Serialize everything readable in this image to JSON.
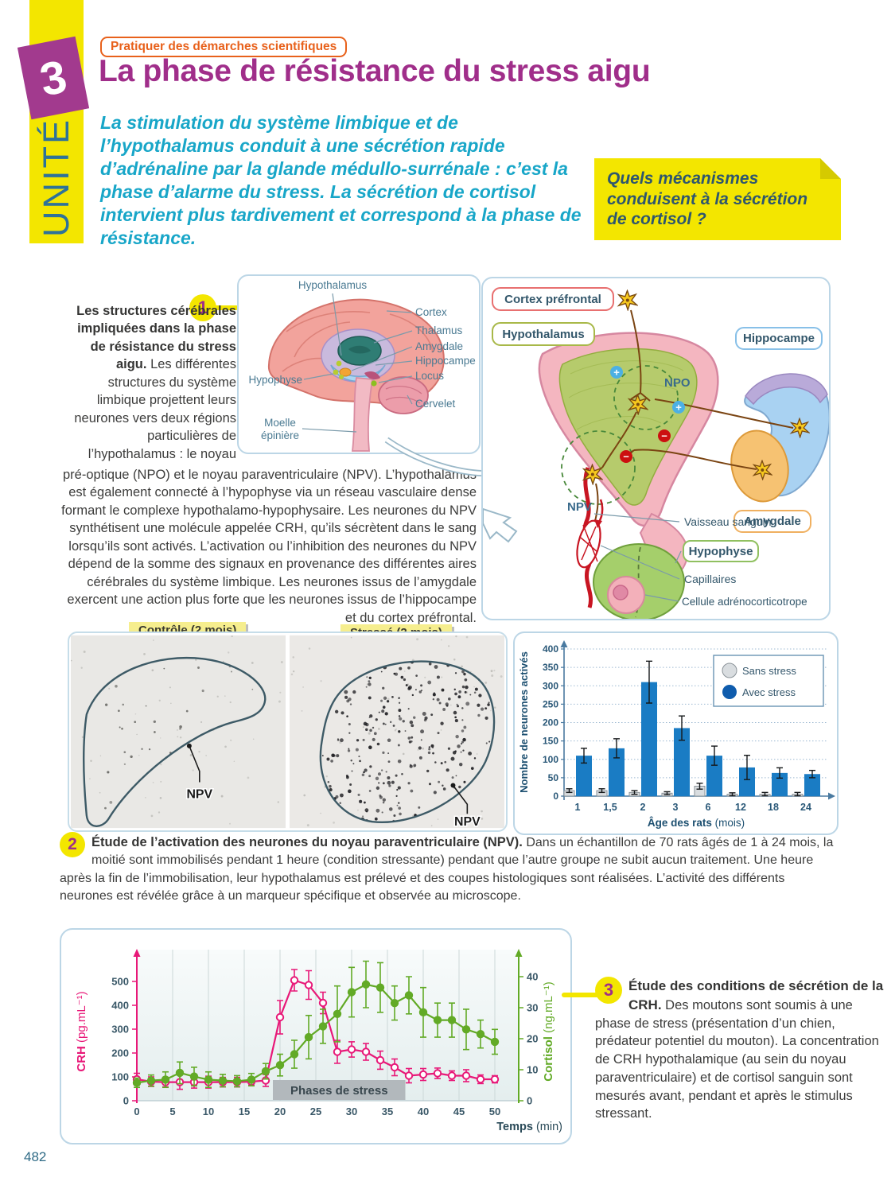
{
  "palette": {
    "yellow": "#f3e600",
    "magenta": "#a02e8a",
    "teal": "#18a6c8",
    "orange": "#e8611b",
    "slate": "#33566b",
    "bar_blue": "#1a7cc4",
    "bar_gray": "#d9dde0",
    "crh_pink": "#e81878",
    "cortisol_green": "#62aa26"
  },
  "banner": {
    "unit_word": "UNITÉ",
    "unit_number": "3"
  },
  "header": {
    "kicker": "Pratiquer des démarches scientifiques",
    "title": "La phase de résistance du stress aigu",
    "intro": "La stimulation du système limbique et de l’hypothalamus conduit à une sécrétion rapide d’adrénaline par la glande médullo-surrénale : c’est la phase d’alarme du stress. La sécrétion de cortisol intervient plus tardivement et correspond à la phase de résistance.",
    "question": "Quels mécanismes conduisent à la sécrétion de cortisol ?"
  },
  "doc1": {
    "number": "1",
    "heading": "Les structures cérébrales impliquées dans la phase de résistance du stress aigu.",
    "body_intro": "Les différentes structures du système limbique projettent leurs neurones vers deux régions particulières de l’hypothalamus : le noyau",
    "body_cont": "pré-optique (NPO) et le noyau paraventriculaire (NPV). L’hypothalamus est également connecté à l’hypophyse via un réseau vasculaire dense formant le complexe hypothalamo-hypophysaire. Les neurones du NPV synthétisent une molécule appelée CRH, qu’ils sécrètent dans le sang lorsqu’ils sont activés. L’activation ou l’inhibition des neurones du NPV dépend de la somme des signaux en provenance des différentes aires cérébrales du système limbique. Les neurones issus de l’amygdale exercent une action plus forte que les neurones issus de l’hippocampe et du cortex préfrontal.",
    "brain": {
      "hypothalamus": "Hypothalamus",
      "cortex": "Cortex",
      "thalamus": "Thalamus",
      "amygdale": "Amygdale",
      "hippocampe": "Hippocampe",
      "locus": "Locus",
      "cervelet": "Cervelet",
      "hypophyse": "Hypophyse",
      "moelle1": "Moelle",
      "moelle2": "épinière"
    },
    "circuit": {
      "cortex_prefrontal": "Cortex préfrontal",
      "hypothalamus": "Hypothalamus",
      "hippocampe": "Hippocampe",
      "amygdale": "Amygdale",
      "npo": "NPO",
      "npv": "NPV",
      "vaisseau": "Vaisseau sanguin",
      "hypophyse": "Hypophyse",
      "capillaires": "Capillaires",
      "cellule": "Cellule adrénocorticotrope",
      "plus": "+",
      "minus": "−"
    }
  },
  "doc2": {
    "number": "2",
    "heading": "Étude de l’activation des neurones du noyau paraventriculaire (NPV).",
    "body": "Dans un échantillon de 70 rats âgés de 1 à 24 mois, la moitié sont immobilisés pendant 1 heure (condition stressante) pendant que l’autre groupe ne subit aucun traitement. Une heure après la fin de l’immobilisation, leur hypothalamus est prélevé et des coupes histologiques sont réalisées. L’activité des différents neurones est révélée grâce à un marqueur spécifique et observée au microscope.",
    "tag_left": "Contrôle (2 mois)",
    "tag_right": "Stressé (2 mois)",
    "npv_left": "NPV",
    "npv_right": "NPV"
  },
  "doc3": {
    "number": "3",
    "heading": "Étude des conditions de sécrétion de la CRH.",
    "body": "Des moutons sont soumis à une phase de stress (présentation d’un chien, prédateur potentiel du mouton). La concentration de CRH hypothalamique (au sein du noyau paraventriculaire) et de cortisol sanguin sont mesurés avant, pendant et après le stimulus stressant."
  },
  "footer": {
    "page_number": "482"
  },
  "chart_data": [
    {
      "type": "bar",
      "title": "",
      "ylabel": "Nombre de neurones activés",
      "xlabel": "Âge des rats",
      "xlabel_unit": "(mois)",
      "ylim": [
        0,
        400
      ],
      "ytick": 50,
      "grid": true,
      "legend_position": "top-right",
      "categories": [
        "1",
        "1,5",
        "2",
        "3",
        "6",
        "12",
        "18",
        "24"
      ],
      "series": [
        {
          "name": "Sans stress",
          "color": "#d9dde0",
          "values": [
            15,
            15,
            10,
            8,
            27,
            5,
            5,
            5
          ],
          "errors": [
            5,
            5,
            5,
            4,
            8,
            4,
            5,
            5
          ]
        },
        {
          "name": "Avec stress",
          "color": "#1a7cc4",
          "values": [
            110,
            130,
            310,
            185,
            110,
            78,
            63,
            60
          ],
          "errors": [
            20,
            26,
            57,
            33,
            26,
            33,
            14,
            10
          ]
        }
      ]
    },
    {
      "type": "line",
      "x": [
        0,
        2,
        4,
        6,
        8,
        10,
        12,
        14,
        16,
        18,
        20,
        22,
        24,
        26,
        28,
        30,
        32,
        34,
        36,
        38,
        40,
        42,
        44,
        46,
        48,
        50
      ],
      "xlabel": "Temps",
      "xlabel_unit": "(min)",
      "xticks": [
        0,
        5,
        10,
        15,
        20,
        25,
        30,
        35,
        40,
        45,
        50
      ],
      "grid": true,
      "left_axis": {
        "label": "CRH",
        "unit": "(pg.mL⁻¹)",
        "color": "#e81878",
        "ticks": [
          0,
          100,
          200,
          300,
          400,
          500
        ]
      },
      "right_axis": {
        "label": "Cortisol",
        "unit": "(ng.mL⁻¹)",
        "color": "#62aa26",
        "ticks": [
          0,
          10,
          20,
          30,
          40
        ]
      },
      "band": {
        "label": "Phases de stress",
        "from": 19,
        "to": 37.5
      },
      "series": [
        {
          "name": "CRH",
          "axis": "left",
          "color": "#e81878",
          "marker": "open",
          "values": [
            90,
            80,
            78,
            78,
            78,
            78,
            78,
            78,
            80,
            85,
            350,
            505,
            485,
            410,
            205,
            215,
            205,
            170,
            140,
            105,
            110,
            115,
            105,
            105,
            90,
            90
          ],
          "errors": [
            25,
            20,
            20,
            30,
            25,
            25,
            20,
            20,
            15,
            25,
            70,
            45,
            60,
            45,
            48,
            32,
            35,
            38,
            35,
            30,
            25,
            22,
            20,
            25,
            18,
            15
          ]
        },
        {
          "name": "Cortisol",
          "axis": "right",
          "color": "#62aa26",
          "marker": "filled",
          "values": [
            5.8,
            6.5,
            6.8,
            9,
            7.8,
            6.8,
            6.5,
            6.3,
            6.8,
            9.5,
            11.5,
            15,
            20.5,
            24,
            28,
            35,
            37.5,
            36.5,
            31.5,
            34,
            28.5,
            26,
            26,
            23,
            21.5,
            19
          ],
          "errors": [
            1.5,
            1.8,
            2.5,
            3.5,
            3,
            2.5,
            2,
            1.8,
            2,
            2.5,
            3.5,
            4.5,
            7,
            5.5,
            9,
            8,
            7.5,
            8,
            5.5,
            6,
            8,
            5.5,
            5.5,
            6.5,
            4.5,
            4
          ]
        }
      ]
    }
  ]
}
